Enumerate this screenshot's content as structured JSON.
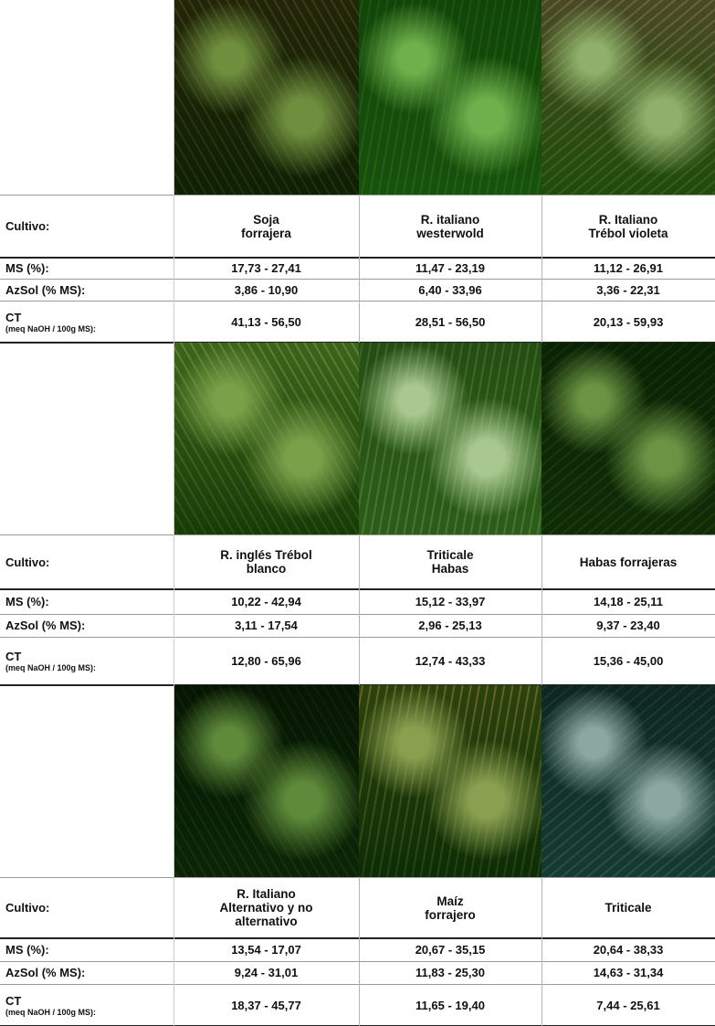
{
  "labels": {
    "cultivo": "Cultivo:",
    "ms": "MS (%):",
    "azsol": "AzSol (% MS):",
    "ct": "CT",
    "ct_unit": "(meq NaOH / 100g MS):"
  },
  "blocks": [
    {
      "crops": [
        {
          "name": [
            "Soja",
            "forrajera"
          ],
          "ms": "17,73 - 27,41",
          "azsol": "3,86 - 10,90",
          "ct": "41,13 - 56,50"
        },
        {
          "name": [
            "R. italiano",
            "westerwold"
          ],
          "ms": "11,47 - 23,19",
          "azsol": "6,40 - 33,96",
          "ct": "28,51 - 56,50"
        },
        {
          "name": [
            "R. Italiano",
            "Trébol violeta"
          ],
          "ms": "11,12 - 26,91",
          "azsol": "3,36 - 22,31",
          "ct": "20,13 - 59,93"
        }
      ]
    },
    {
      "crops": [
        {
          "name": [
            "R. inglés Trébol",
            "blanco"
          ],
          "ms": "10,22 - 42,94",
          "azsol": "3,11 - 17,54",
          "ct": "12,80 - 65,96"
        },
        {
          "name": [
            "Triticale",
            "Habas"
          ],
          "ms": "15,12 - 33,97",
          "azsol": "2,96 - 25,13",
          "ct": "12,74 - 43,33"
        },
        {
          "name": [
            "Habas forrajeras"
          ],
          "ms": "14,18 - 25,11",
          "azsol": "9,37 - 23,40",
          "ct": "15,36 - 45,00"
        }
      ]
    },
    {
      "crops": [
        {
          "name": [
            "R. Italiano",
            "Alternativo y no",
            "alternativo"
          ],
          "ms": "13,54 - 17,07",
          "azsol": "9,24 - 31,01",
          "ct": "18,37 - 45,77"
        },
        {
          "name": [
            "Maíz",
            "forrajero"
          ],
          "ms": "20,67 - 35,15",
          "azsol": "11,83 - 25,30",
          "ct": "11,65 - 19,40"
        },
        {
          "name": [
            "Triticale"
          ],
          "ms": "20,64 - 38,33",
          "azsol": "14,63 - 31,34",
          "ct": "7,44 - 25,61"
        }
      ]
    }
  ]
}
